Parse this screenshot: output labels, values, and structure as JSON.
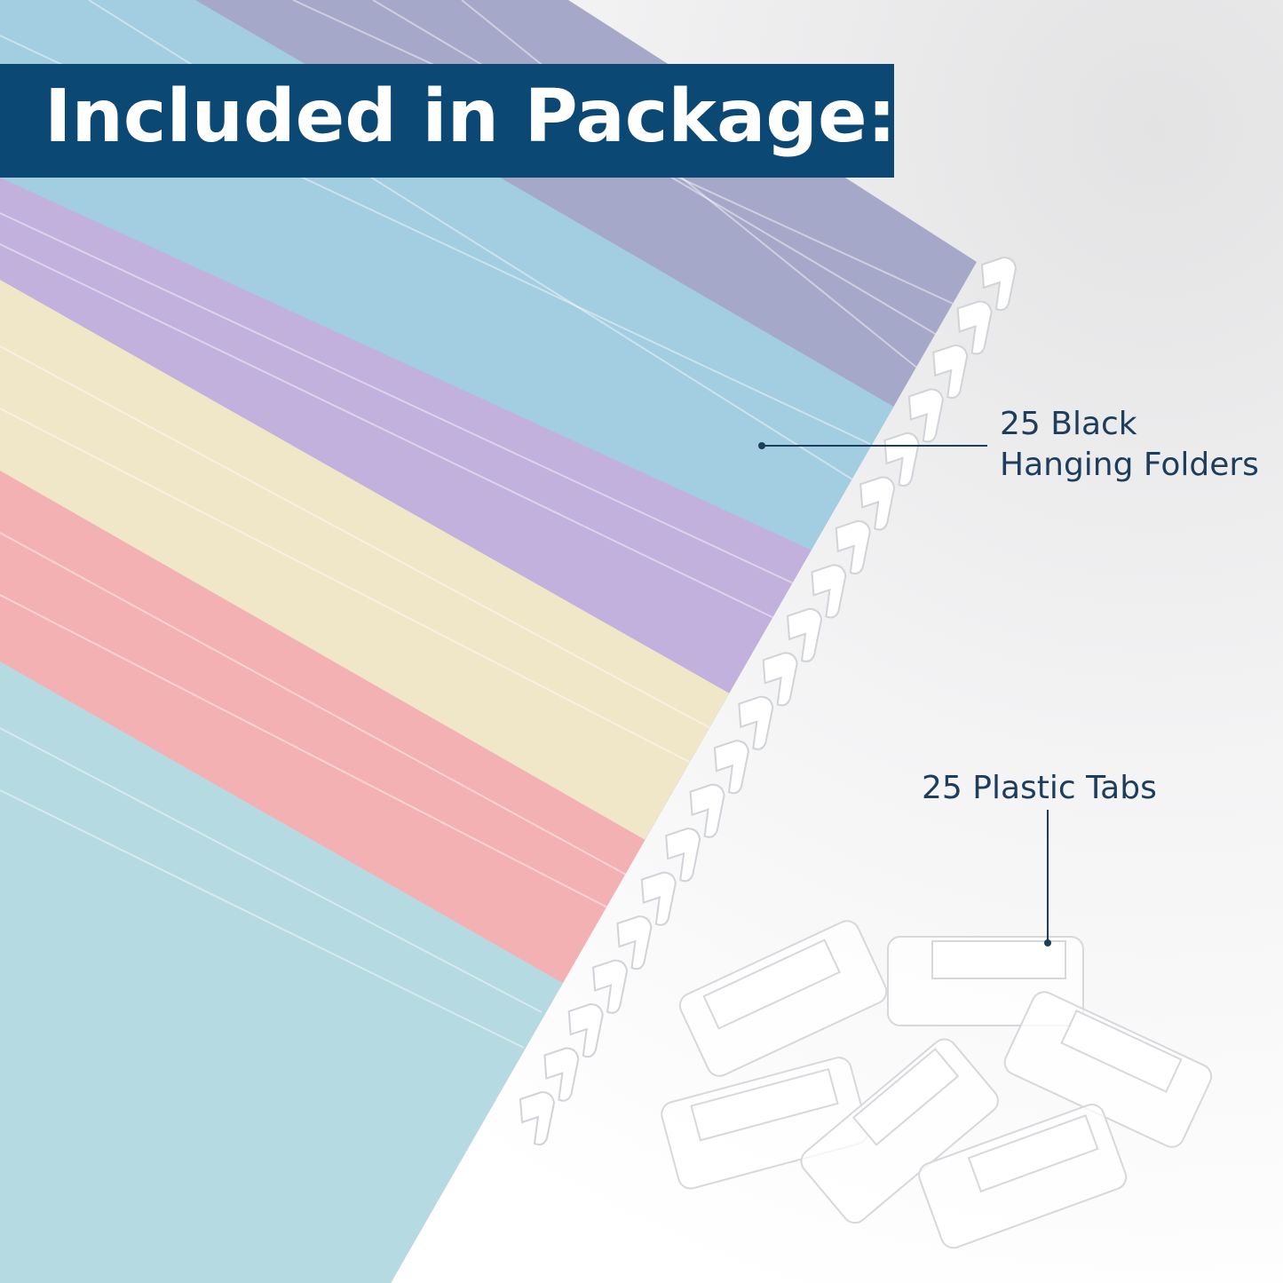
{
  "banner": {
    "title": "Included in Package:"
  },
  "callouts": {
    "folders": {
      "line1": "25 Black",
      "line2": "Hanging Folders"
    },
    "tabs": {
      "label": "25 Plastic Tabs"
    }
  },
  "colors": {
    "banner": "#0b4874",
    "label_text": "#1d3d5c",
    "folder_gray_violet": "#a6a8c9",
    "folder_blue": "#a3cde0",
    "folder_purple": "#c2b0dd",
    "folder_cream": "#f0e6c8",
    "folder_pink": "#f4b1b4",
    "folder_teal": "#b5dae1"
  }
}
